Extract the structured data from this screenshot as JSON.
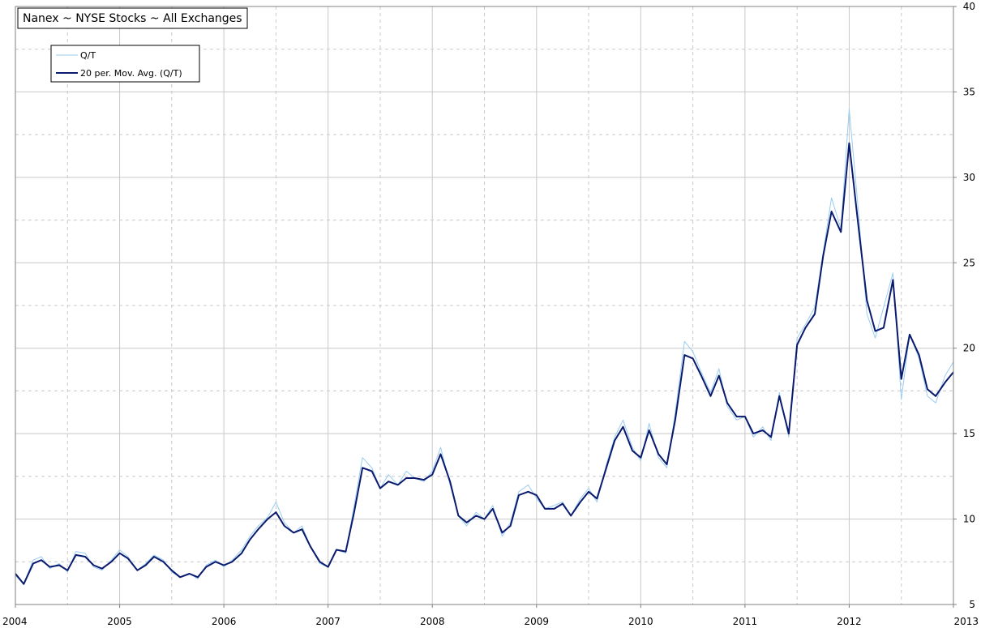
{
  "chart_data": {
    "type": "line",
    "title": "Nanex ~ NYSE Stocks ~ All Exchanges",
    "xlabel": "",
    "ylabel": "",
    "x_range": [
      "2004",
      "2013"
    ],
    "ylim": [
      5,
      40
    ],
    "x_ticks": [
      "2004",
      "2005",
      "2006",
      "2007",
      "2008",
      "2009",
      "2010",
      "2011",
      "2012",
      "2013"
    ],
    "y_ticks": [
      5,
      10,
      15,
      20,
      25,
      30,
      35,
      40
    ],
    "grid": true,
    "legend_position": "top-left",
    "colors": {
      "raw": "#99ccf0",
      "avg": "#0a1a6e",
      "grid_solid": "#c8c8c8",
      "grid_dashed": "#c8c8c8"
    },
    "series": [
      {
        "name": "Q/T",
        "style": "thin-light",
        "x": [
          2004.0,
          2004.08,
          2004.17,
          2004.25,
          2004.33,
          2004.42,
          2004.5,
          2004.58,
          2004.67,
          2004.75,
          2004.83,
          2004.92,
          2005.0,
          2005.08,
          2005.17,
          2005.25,
          2005.33,
          2005.42,
          2005.5,
          2005.58,
          2005.67,
          2005.75,
          2005.83,
          2005.92,
          2006.0,
          2006.08,
          2006.17,
          2006.25,
          2006.33,
          2006.42,
          2006.5,
          2006.58,
          2006.67,
          2006.75,
          2006.83,
          2006.92,
          2007.0,
          2007.08,
          2007.17,
          2007.25,
          2007.33,
          2007.42,
          2007.5,
          2007.58,
          2007.67,
          2007.75,
          2007.83,
          2007.92,
          2008.0,
          2008.08,
          2008.17,
          2008.25,
          2008.33,
          2008.42,
          2008.5,
          2008.58,
          2008.67,
          2008.75,
          2008.83,
          2008.92,
          2009.0,
          2009.08,
          2009.17,
          2009.25,
          2009.33,
          2009.42,
          2009.5,
          2009.58,
          2009.67,
          2009.75,
          2009.83,
          2009.92,
          2010.0,
          2010.08,
          2010.17,
          2010.25,
          2010.33,
          2010.42,
          2010.5,
          2010.58,
          2010.67,
          2010.75,
          2010.83,
          2010.92,
          2011.0,
          2011.08,
          2011.17,
          2011.25,
          2011.33,
          2011.42,
          2011.5,
          2011.58,
          2011.67,
          2011.75,
          2011.83,
          2011.92,
          2012.0,
          2012.08,
          2012.17,
          2012.25,
          2012.33,
          2012.42,
          2012.5,
          2012.58,
          2012.67,
          2012.75,
          2012.83,
          2012.92,
          2013.0
        ],
        "values": [
          6.7,
          6.2,
          7.6,
          7.8,
          7.1,
          7.4,
          6.9,
          8.1,
          8.0,
          7.2,
          7.0,
          7.6,
          8.2,
          7.8,
          7.0,
          7.4,
          7.9,
          7.6,
          6.9,
          6.6,
          6.8,
          6.5,
          7.3,
          7.6,
          7.2,
          7.6,
          8.2,
          9.0,
          9.6,
          10.1,
          11.0,
          9.8,
          9.2,
          9.6,
          8.4,
          7.4,
          7.2,
          8.2,
          8.0,
          10.8,
          13.6,
          13.0,
          11.8,
          12.6,
          12.0,
          12.8,
          12.4,
          12.2,
          12.8,
          14.2,
          12.0,
          10.2,
          9.6,
          10.4,
          10.0,
          10.8,
          9.0,
          9.8,
          11.6,
          12.0,
          11.2,
          10.6,
          10.8,
          11.0,
          10.2,
          11.2,
          11.8,
          11.0,
          13.2,
          14.8,
          15.8,
          14.2,
          13.4,
          15.6,
          13.6,
          13.0,
          16.2,
          20.4,
          19.8,
          18.6,
          17.4,
          18.8,
          16.6,
          15.8,
          16.0,
          14.8,
          15.4,
          14.6,
          17.4,
          14.8,
          20.6,
          21.4,
          22.4,
          25.6,
          28.8,
          27.0,
          34.0,
          28.6,
          22.0,
          20.6,
          22.4,
          24.4,
          17.0,
          20.8,
          19.4,
          17.2,
          16.8,
          18.4,
          19.2
        ]
      },
      {
        "name": "20 per. Mov. Avg. (Q/T)",
        "style": "thick-dark",
        "x": [
          2004.0,
          2004.08,
          2004.17,
          2004.25,
          2004.33,
          2004.42,
          2004.5,
          2004.58,
          2004.67,
          2004.75,
          2004.83,
          2004.92,
          2005.0,
          2005.08,
          2005.17,
          2005.25,
          2005.33,
          2005.42,
          2005.5,
          2005.58,
          2005.67,
          2005.75,
          2005.83,
          2005.92,
          2006.0,
          2006.08,
          2006.17,
          2006.25,
          2006.33,
          2006.42,
          2006.5,
          2006.58,
          2006.67,
          2006.75,
          2006.83,
          2006.92,
          2007.0,
          2007.08,
          2007.17,
          2007.25,
          2007.33,
          2007.42,
          2007.5,
          2007.58,
          2007.67,
          2007.75,
          2007.83,
          2007.92,
          2008.0,
          2008.08,
          2008.17,
          2008.25,
          2008.33,
          2008.42,
          2008.5,
          2008.58,
          2008.67,
          2008.75,
          2008.83,
          2008.92,
          2009.0,
          2009.08,
          2009.17,
          2009.25,
          2009.33,
          2009.42,
          2009.5,
          2009.58,
          2009.67,
          2009.75,
          2009.83,
          2009.92,
          2010.0,
          2010.08,
          2010.17,
          2010.25,
          2010.33,
          2010.42,
          2010.5,
          2010.58,
          2010.67,
          2010.75,
          2010.83,
          2010.92,
          2011.0,
          2011.08,
          2011.17,
          2011.25,
          2011.33,
          2011.42,
          2011.5,
          2011.58,
          2011.67,
          2011.75,
          2011.83,
          2011.92,
          2012.0,
          2012.08,
          2012.17,
          2012.25,
          2012.33,
          2012.42,
          2012.5,
          2012.58,
          2012.67,
          2012.75,
          2012.83,
          2012.92,
          2013.0
        ],
        "values": [
          6.8,
          6.2,
          7.4,
          7.6,
          7.2,
          7.3,
          7.0,
          7.9,
          7.8,
          7.3,
          7.1,
          7.5,
          8.0,
          7.7,
          7.0,
          7.3,
          7.8,
          7.5,
          7.0,
          6.6,
          6.8,
          6.6,
          7.2,
          7.5,
          7.3,
          7.5,
          8.0,
          8.8,
          9.4,
          10.0,
          10.4,
          9.6,
          9.2,
          9.4,
          8.4,
          7.5,
          7.2,
          8.2,
          8.1,
          10.4,
          13.0,
          12.8,
          11.8,
          12.2,
          12.0,
          12.4,
          12.4,
          12.3,
          12.6,
          13.8,
          12.2,
          10.2,
          9.8,
          10.2,
          10.0,
          10.6,
          9.2,
          9.6,
          11.4,
          11.6,
          11.4,
          10.6,
          10.6,
          10.9,
          10.2,
          11.0,
          11.6,
          11.2,
          13.0,
          14.6,
          15.4,
          14.0,
          13.6,
          15.2,
          13.8,
          13.2,
          15.8,
          19.6,
          19.4,
          18.4,
          17.2,
          18.4,
          16.8,
          16.0,
          16.0,
          15.0,
          15.2,
          14.8,
          17.2,
          15.0,
          20.2,
          21.2,
          22.0,
          25.4,
          28.0,
          26.8,
          32.0,
          27.6,
          22.8,
          21.0,
          21.2,
          24.0,
          18.2,
          20.8,
          19.6,
          17.6,
          17.2,
          18.0,
          18.6
        ]
      }
    ]
  }
}
